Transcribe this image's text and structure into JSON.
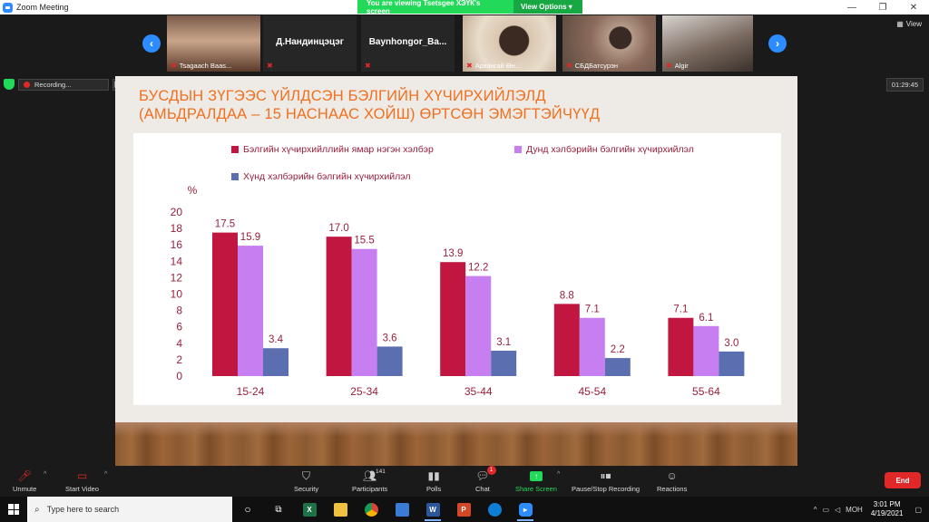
{
  "window": {
    "title": "Zoom Meeting",
    "minimize": "—",
    "restore": "❐",
    "close": "✕"
  },
  "banner": {
    "viewing": "You are viewing Tsetsgee ХЭҮК's screen",
    "view_options": "View Options ▾"
  },
  "gallery": {
    "prev": "‹",
    "next": "›",
    "view_label": "View",
    "tiles": [
      {
        "name": "Tsagaach Baas...",
        "big": ""
      },
      {
        "name": "",
        "big": "Д.Нандинцэцэг"
      },
      {
        "name": "",
        "big": "Baynhongor_Ba..."
      },
      {
        "name": "Архангай Өн...",
        "big": ""
      },
      {
        "name": "СБДБатсурэн",
        "big": ""
      },
      {
        "name": "Algir",
        "big": ""
      }
    ]
  },
  "recording": {
    "label": "Recording...",
    "pause": "❚❚",
    "stop": "■"
  },
  "timer": "01:29:45",
  "slide": {
    "title_line1": "БУСДЫН ЗҮГЭЭС ҮЙЛДСЭН БЭЛГИЙН ХҮЧИРХИЙЛЭЛД",
    "title_line2": "(АМЬДРАЛДАА – 15 НАСНААС ХОЙШ) ӨРТСӨН ЭМЭГТЭЙЧҮҮД"
  },
  "chart_data": {
    "type": "bar",
    "ylabel": "%",
    "ylim": [
      0,
      20
    ],
    "yticks": [
      "0",
      "2",
      "4",
      "6",
      "8",
      "10",
      "12",
      "14",
      "16",
      "18",
      "20"
    ],
    "categories": [
      "15-24",
      "25-34",
      "35-44",
      "45-54",
      "55-64"
    ],
    "series": [
      {
        "name": "Бэлгийн хүчирхийллийн ямар нэгэн хэлбэр",
        "color": "#c0163f",
        "values": [
          17.5,
          17.0,
          13.9,
          8.8,
          7.1
        ],
        "labels": [
          "17.5",
          "17.0",
          "13.9",
          "8.8",
          "7.1"
        ]
      },
      {
        "name": "Дунд хэлбэрийн бэлгийн хүчирхийлэл",
        "color": "#c77ef0",
        "values": [
          15.9,
          15.5,
          12.2,
          7.1,
          6.1
        ],
        "labels": [
          "15.9",
          "15.5",
          "12.2",
          "7.1",
          "6.1"
        ]
      },
      {
        "name": "Хүнд хэлбэрийн бэлгийн хүчирхийлэл",
        "color": "#5b6fb0",
        "values": [
          3.4,
          3.6,
          3.1,
          2.2,
          3.0
        ],
        "labels": [
          "3.4",
          "3.6",
          "3.1",
          "2.2",
          "3.0"
        ]
      }
    ],
    "label_color": "#9a1f3c",
    "legend_position": "top"
  },
  "toolbar": {
    "unmute": "Unmute",
    "start_video": "Start Video",
    "security": "Security",
    "participants": "Participants",
    "participants_count": "141",
    "polls": "Polls",
    "chat": "Chat",
    "chat_badge": "1",
    "share_screen": "Share Screen",
    "pause_stop": "Pause/Stop Recording",
    "reactions": "Reactions",
    "end": "End"
  },
  "taskbar": {
    "search_placeholder": "Type here to search",
    "lang": "МОН",
    "time": "3:01 PM",
    "date": "4/19/2021"
  }
}
